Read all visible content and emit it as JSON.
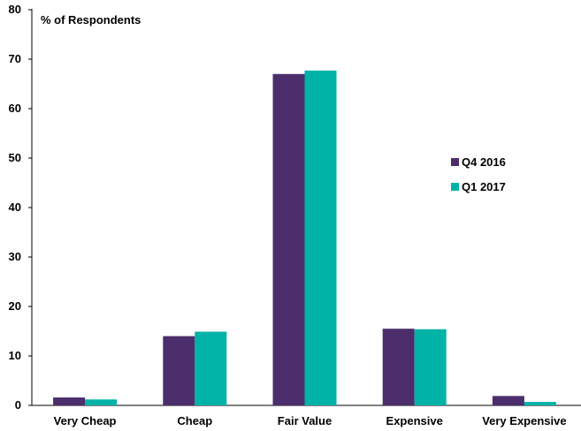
{
  "chart_data": {
    "type": "bar",
    "ylabel": "% of Respondents",
    "xlabel": "",
    "ylim": [
      0,
      80
    ],
    "yticks": [
      0,
      10,
      20,
      30,
      40,
      50,
      60,
      70,
      80
    ],
    "grid": false,
    "legend_position": "right",
    "categories": [
      "Very Cheap",
      "Cheap",
      "Fair Value",
      "Expensive",
      "Very Expensive"
    ],
    "series": [
      {
        "name": "Q4 2016",
        "color": "#4b2e6b",
        "values": [
          1.6,
          14.0,
          67.0,
          15.5,
          1.9
        ]
      },
      {
        "name": "Q1 2017",
        "color": "#00b3a6",
        "values": [
          1.2,
          14.9,
          67.7,
          15.4,
          0.7
        ]
      }
    ]
  }
}
